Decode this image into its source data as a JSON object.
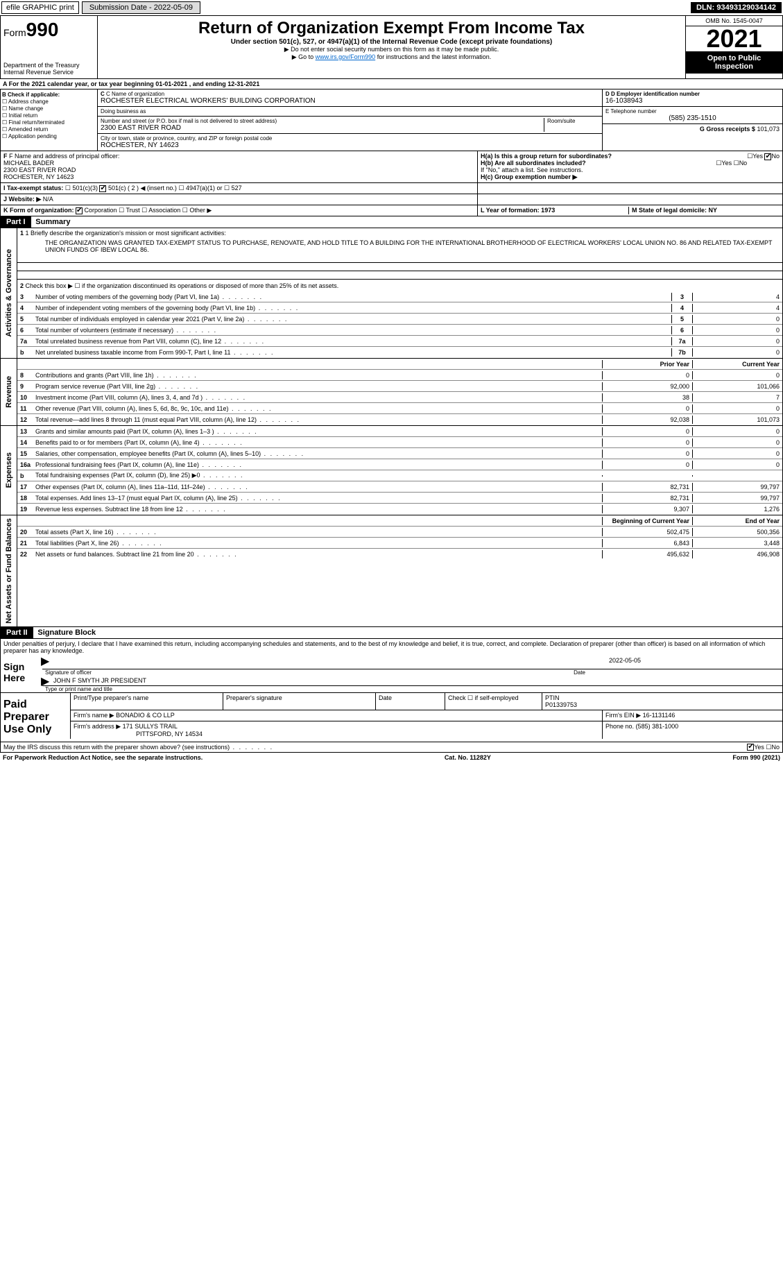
{
  "topbar": {
    "efile_label": "efile GRAPHIC print",
    "submit_btn": "Submission Date - 2022-05-09",
    "dln_label": "DLN: 93493129034142"
  },
  "header": {
    "form_prefix": "Form",
    "form_num": "990",
    "dept": "Department of the Treasury",
    "irs": "Internal Revenue Service",
    "title": "Return of Organization Exempt From Income Tax",
    "sub": "Under section 501(c), 527, or 4947(a)(1) of the Internal Revenue Code (except private foundations)",
    "note1": "▶ Do not enter social security numbers on this form as it may be made public.",
    "note2_pre": "▶ Go to ",
    "note2_link": "www.irs.gov/Form990",
    "note2_post": " for instructions and the latest information.",
    "omb": "OMB No. 1545-0047",
    "year": "2021",
    "inspect": "Open to Public Inspection"
  },
  "period": {
    "text": "A For the 2021 calendar year, or tax year beginning 01-01-2021    , and ending 12-31-2021"
  },
  "sectionB": {
    "hdr": "B Check if applicable:",
    "items": [
      "Address change",
      "Name change",
      "Initial return",
      "Final return/terminated",
      "Amended return",
      "Application pending"
    ]
  },
  "sectionC": {
    "name_lbl": "C Name of organization",
    "name": "ROCHESTER ELECTRICAL WORKERS' BUILDING CORPORATION",
    "dba_lbl": "Doing business as",
    "dba": "",
    "addr_lbl": "Number and street (or P.O. box if mail is not delivered to street address)",
    "room_lbl": "Room/suite",
    "addr": "2300 EAST RIVER ROAD",
    "city_lbl": "City or town, state or province, country, and ZIP or foreign postal code",
    "city": "ROCHESTER, NY  14623"
  },
  "sectionD": {
    "ein_lbl": "D Employer identification number",
    "ein": "16-1038943",
    "tel_lbl": "E Telephone number",
    "tel": "(585) 235-1510",
    "gross_lbl": "G Gross receipts $",
    "gross": "101,073"
  },
  "sectionF": {
    "lbl": "F Name and address of principal officer:",
    "name": "MICHAEL BADER",
    "addr1": "2300 EAST RIVER ROAD",
    "addr2": "ROCHESTER, NY  14623"
  },
  "sectionH": {
    "a_lbl": "H(a)  Is this a group return for subordinates?",
    "yes": "Yes",
    "no": "No",
    "b_lbl": "H(b)  Are all subordinates included?",
    "b_note": "If \"No,\" attach a list. See instructions.",
    "c_lbl": "H(c)  Group exemption number ▶"
  },
  "sectionI": {
    "lbl": "I  Tax-exempt status:",
    "opt1": "501(c)(3)",
    "opt2": "501(c) ( 2 ) ◀ (insert no.)",
    "opt3": "4947(a)(1) or",
    "opt4": "527"
  },
  "sectionJ": {
    "lbl": "J  Website: ▶",
    "val": "N/A"
  },
  "sectionK": {
    "lbl": "K Form of organization:",
    "opt1": "Corporation",
    "opt2": "Trust",
    "opt3": "Association",
    "opt4": "Other ▶"
  },
  "sectionL": {
    "lbl": "L Year of formation: 1973"
  },
  "sectionM": {
    "lbl": "M State of legal domicile: NY"
  },
  "part1": {
    "hdr": "Part I",
    "title": "Summary",
    "l1": "1  Briefly describe the organization's mission or most significant activities:",
    "mission": "THE ORGANIZATION WAS GRANTED TAX-EXEMPT STATUS TO PURCHASE, RENOVATE, AND HOLD TITLE TO A BUILDING FOR THE INTERNATIONAL BROTHERHOOD OF ELECTRICAL WORKERS' LOCAL UNION NO. 86 AND RELATED TAX-EXEMPT UNION FUNDS OF IBEW LOCAL 86.",
    "l2": "Check this box ▶ ☐ if the organization discontinued its operations or disposed of more than 25% of its net assets.",
    "vert_gov": "Activities & Governance",
    "vert_rev": "Revenue",
    "vert_exp": "Expenses",
    "vert_net": "Net Assets or Fund Balances",
    "prior_hdr": "Prior Year",
    "curr_hdr": "Current Year",
    "beg_hdr": "Beginning of Current Year",
    "end_hdr": "End of Year",
    "rows_gov": [
      {
        "n": "3",
        "d": "Number of voting members of the governing body (Part VI, line 1a)",
        "box": "3",
        "v": "4"
      },
      {
        "n": "4",
        "d": "Number of independent voting members of the governing body (Part VI, line 1b)",
        "box": "4",
        "v": "4"
      },
      {
        "n": "5",
        "d": "Total number of individuals employed in calendar year 2021 (Part V, line 2a)",
        "box": "5",
        "v": "0"
      },
      {
        "n": "6",
        "d": "Total number of volunteers (estimate if necessary)",
        "box": "6",
        "v": "0"
      },
      {
        "n": "7a",
        "d": "Total unrelated business revenue from Part VIII, column (C), line 12",
        "box": "7a",
        "v": "0"
      },
      {
        "n": "b",
        "d": "Net unrelated business taxable income from Form 990-T, Part I, line 11",
        "box": "7b",
        "v": "0"
      }
    ],
    "rows_rev": [
      {
        "n": "8",
        "d": "Contributions and grants (Part VIII, line 1h)",
        "p": "0",
        "c": "0"
      },
      {
        "n": "9",
        "d": "Program service revenue (Part VIII, line 2g)",
        "p": "92,000",
        "c": "101,066"
      },
      {
        "n": "10",
        "d": "Investment income (Part VIII, column (A), lines 3, 4, and 7d )",
        "p": "38",
        "c": "7"
      },
      {
        "n": "11",
        "d": "Other revenue (Part VIII, column (A), lines 5, 6d, 8c, 9c, 10c, and 11e)",
        "p": "0",
        "c": "0"
      },
      {
        "n": "12",
        "d": "Total revenue—add lines 8 through 11 (must equal Part VIII, column (A), line 12)",
        "p": "92,038",
        "c": "101,073"
      }
    ],
    "rows_exp": [
      {
        "n": "13",
        "d": "Grants and similar amounts paid (Part IX, column (A), lines 1–3 )",
        "p": "0",
        "c": "0"
      },
      {
        "n": "14",
        "d": "Benefits paid to or for members (Part IX, column (A), line 4)",
        "p": "0",
        "c": "0"
      },
      {
        "n": "15",
        "d": "Salaries, other compensation, employee benefits (Part IX, column (A), lines 5–10)",
        "p": "0",
        "c": "0"
      },
      {
        "n": "16a",
        "d": "Professional fundraising fees (Part IX, column (A), line 11e)",
        "p": "0",
        "c": "0"
      },
      {
        "n": "b",
        "d": "Total fundraising expenses (Part IX, column (D), line 25) ▶0",
        "p": "",
        "c": ""
      },
      {
        "n": "17",
        "d": "Other expenses (Part IX, column (A), lines 11a–11d, 11f–24e)",
        "p": "82,731",
        "c": "99,797"
      },
      {
        "n": "18",
        "d": "Total expenses. Add lines 13–17 (must equal Part IX, column (A), line 25)",
        "p": "82,731",
        "c": "99,797"
      },
      {
        "n": "19",
        "d": "Revenue less expenses. Subtract line 18 from line 12",
        "p": "9,307",
        "c": "1,276"
      }
    ],
    "rows_net": [
      {
        "n": "20",
        "d": "Total assets (Part X, line 16)",
        "p": "502,475",
        "c": "500,356"
      },
      {
        "n": "21",
        "d": "Total liabilities (Part X, line 26)",
        "p": "6,843",
        "c": "3,448"
      },
      {
        "n": "22",
        "d": "Net assets or fund balances. Subtract line 21 from line 20",
        "p": "495,632",
        "c": "496,908"
      }
    ]
  },
  "part2": {
    "hdr": "Part II",
    "title": "Signature Block",
    "decl": "Under penalties of perjury, I declare that I have examined this return, including accompanying schedules and statements, and to the best of my knowledge and belief, it is true, correct, and complete. Declaration of preparer (other than officer) is based on all information of which preparer has any knowledge.",
    "sign_here": "Sign Here",
    "sig_officer": "Signature of officer",
    "sig_date": "2022-05-05",
    "date_lbl": "Date",
    "officer_name": "JOHN F SMYTH JR PRESIDENT",
    "type_name": "Type or print name and title",
    "paid_prep": "Paid Preparer Use Only",
    "prep_name_lbl": "Print/Type preparer's name",
    "prep_sig_lbl": "Preparer's signature",
    "prep_date_lbl": "Date",
    "check_lbl": "Check ☐ if self-employed",
    "ptin_lbl": "PTIN",
    "ptin": "P01339753",
    "firm_name_lbl": "Firm's name    ▶",
    "firm_name": "BONADIO & CO LLP",
    "firm_ein_lbl": "Firm's EIN ▶",
    "firm_ein": "16-1131146",
    "firm_addr_lbl": "Firm's address ▶",
    "firm_addr": "171 SULLYS TRAIL",
    "firm_city": "PITTSFORD, NY  14534",
    "phone_lbl": "Phone no.",
    "phone": "(585) 381-1000",
    "discuss": "May the IRS discuss this return with the preparer shown above? (see instructions)",
    "yes": "Yes",
    "no": "No"
  },
  "footer": {
    "pra": "For Paperwork Reduction Act Notice, see the separate instructions.",
    "cat": "Cat. No. 11282Y",
    "form": "Form 990 (2021)"
  }
}
